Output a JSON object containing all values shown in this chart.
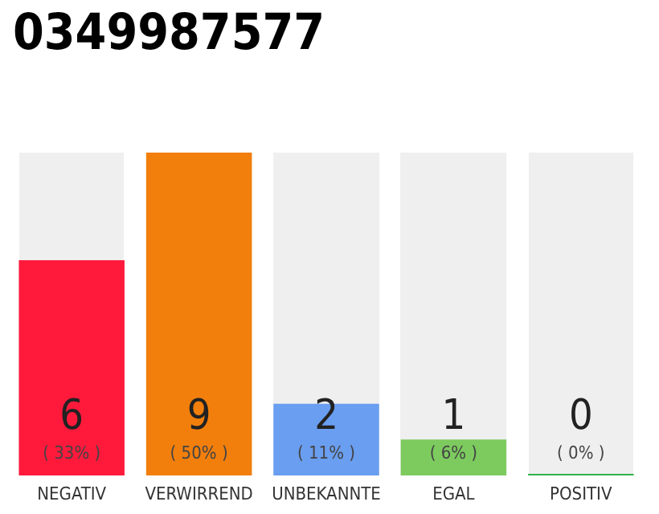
{
  "chart_data": {
    "type": "bar",
    "title": "0349987577",
    "categories": [
      "NEGATIV",
      "VERWIRREND",
      "UNBEKANNTE",
      "EGAL",
      "POSITIV"
    ],
    "values": [
      6,
      9,
      2,
      1,
      0
    ],
    "colors": [
      "#ff1a3c",
      "#f27f0c",
      "#6a9ef0",
      "#7dcb5f",
      "#2db34a"
    ],
    "value_labels": [
      "6\n( 33% )",
      "9\n( 50% )",
      "2\n( 11% )",
      "1\n( 6% )",
      "0\n( 0% )"
    ]
  }
}
